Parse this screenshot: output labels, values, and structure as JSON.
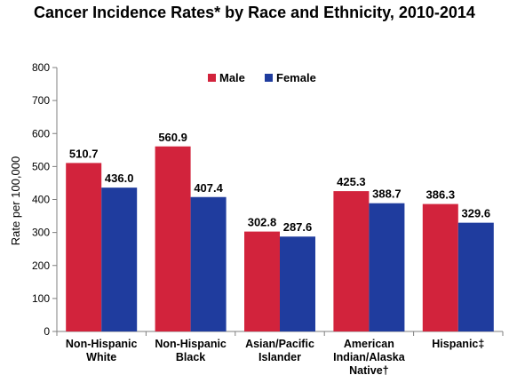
{
  "chart_data": {
    "type": "bar",
    "title": "Cancer Incidence Rates* by Race and Ethnicity, 2010-2014",
    "ylabel": "Rate per 100,000",
    "xlabel": "",
    "ylim": [
      0,
      800
    ],
    "yticks": [
      "0",
      "100",
      "200",
      "300",
      "400",
      "500",
      "600",
      "700",
      "800"
    ],
    "categories": [
      [
        "Non-Hispanic",
        "White"
      ],
      [
        "Non-Hispanic",
        "Black"
      ],
      [
        "Asian/Pacific",
        "Islander"
      ],
      [
        "American",
        "Indian/Alaska",
        "Native†"
      ],
      [
        "Hispanic‡"
      ]
    ],
    "series": [
      {
        "name": "Male",
        "color": "#d2233c",
        "values": [
          510.7,
          560.9,
          302.8,
          425.3,
          386.3
        ],
        "labels": [
          "510.7",
          "560.9",
          "302.8",
          "425.3",
          "386.3"
        ]
      },
      {
        "name": "Female",
        "color": "#1f3c9e",
        "values": [
          436.0,
          407.4,
          287.6,
          388.7,
          329.6
        ],
        "labels": [
          "436.0",
          "407.4",
          "287.6",
          "388.7",
          "329.6"
        ]
      }
    ],
    "legend_position": "top-center",
    "grid": false
  }
}
